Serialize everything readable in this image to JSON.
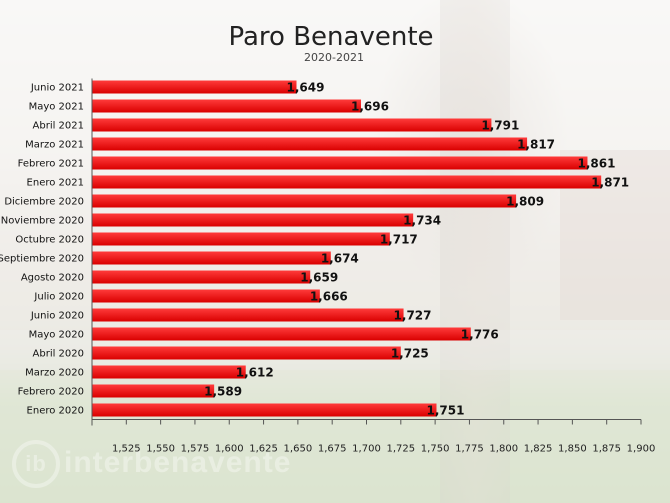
{
  "watermark": {
    "logo_text": "ib",
    "text": "interbenavente"
  },
  "chart_data": {
    "type": "bar",
    "orientation": "horizontal",
    "title": "Paro Benavente",
    "subtitle": "2020-2021",
    "categories": [
      "Junio 2021",
      "Mayo 2021",
      "Abril 2021",
      "Marzo 2021",
      "Febrero 2021",
      "Enero 2021",
      "Diciembre 2020",
      "Noviembre 2020",
      "Octubre 2020",
      "Septiembre 2020",
      "Agosto 2020",
      "Julio 2020",
      "Junio 2020",
      "Mayo 2020",
      "Abril 2020",
      "Marzo 2020",
      "Febrero 2020",
      "Enero 2020"
    ],
    "values": [
      1649,
      1696,
      1791,
      1817,
      1861,
      1871,
      1809,
      1734,
      1717,
      1674,
      1659,
      1666,
      1727,
      1776,
      1725,
      1612,
      1589,
      1751
    ],
    "value_labels": [
      "1,649",
      "1,696",
      "1,791",
      "1,817",
      "1,861",
      "1,871",
      "1,809",
      "1,734",
      "1,717",
      "1,674",
      "1,659",
      "1,666",
      "1,727",
      "1,776",
      "1,725",
      "1,612",
      "1,589",
      "1,751"
    ],
    "xlim": [
      1500,
      1900
    ],
    "xticks": [
      1525,
      1550,
      1575,
      1600,
      1625,
      1650,
      1675,
      1700,
      1725,
      1750,
      1775,
      1800,
      1825,
      1850,
      1875,
      1900
    ],
    "xtick_labels": [
      "1,525",
      "1,550",
      "1,575",
      "1,600",
      "1,625",
      "1,650",
      "1,675",
      "1,700",
      "1,725",
      "1,750",
      "1,775",
      "1,800",
      "1,825",
      "1,850",
      "1,875",
      "1,900"
    ],
    "bar_color": "#ee1111",
    "grid": false,
    "legend": "none"
  }
}
